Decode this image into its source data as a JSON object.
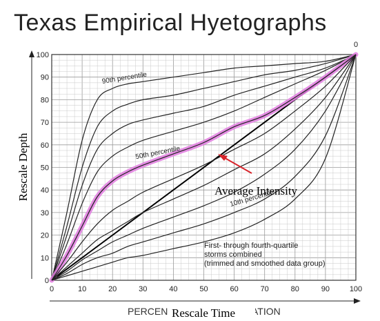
{
  "slide": {
    "title": "Texas Empirical Hyetographs"
  },
  "chart_data": {
    "type": "line",
    "title": "Texas Empirical Hyetographs",
    "xlabel": "Rescale Time",
    "ylabel": "Rescale Depth",
    "xlabel_print_left": "PERCEN",
    "xlabel_print_right": "ATION",
    "top_corner_label": "0",
    "xlim": [
      0,
      100
    ],
    "ylim": [
      0,
      100
    ],
    "xticks": [
      "0",
      "10",
      "20",
      "30",
      "40",
      "50",
      "60",
      "70",
      "80",
      "90",
      "100"
    ],
    "yticks": [
      "0",
      "10",
      "20",
      "30",
      "40",
      "50",
      "60",
      "70",
      "80",
      "90",
      "100"
    ],
    "grid": true,
    "x": [
      0,
      5,
      10,
      15,
      20,
      25,
      30,
      40,
      50,
      60,
      70,
      80,
      90,
      100
    ],
    "series": [
      {
        "name": "90th percentile",
        "values": [
          0,
          30,
          62,
          80,
          85,
          87,
          88,
          90,
          92,
          94,
          95,
          96,
          97,
          100
        ]
      },
      {
        "values": [
          0,
          24,
          50,
          68,
          75,
          78,
          80,
          82,
          85,
          88,
          91,
          93,
          96,
          100
        ]
      },
      {
        "values": [
          0,
          20,
          42,
          58,
          65,
          69,
          71,
          74,
          77,
          82,
          86,
          90,
          94,
          100
        ]
      },
      {
        "values": [
          0,
          16,
          34,
          48,
          55,
          59,
          62,
          66,
          70,
          75,
          81,
          87,
          93,
          100
        ]
      },
      {
        "name": "50th percentile",
        "values": [
          0,
          11,
          24,
          37,
          44,
          48,
          51,
          56,
          61,
          68,
          73,
          81,
          90,
          100
        ]
      },
      {
        "values": [
          0,
          8,
          17,
          25,
          31,
          35,
          39,
          45,
          51,
          58,
          65,
          75,
          86,
          100
        ]
      },
      {
        "values": [
          0,
          6,
          12,
          18,
          22,
          26,
          30,
          36,
          42,
          49,
          56,
          67,
          81,
          100
        ]
      },
      {
        "values": [
          0,
          4,
          9,
          13,
          17,
          20,
          23,
          28,
          33,
          39,
          47,
          58,
          75,
          100
        ]
      },
      {
        "name": "10th percentile",
        "values": [
          0,
          3,
          7,
          10,
          12,
          15,
          17,
          21,
          25,
          30,
          36,
          46,
          64,
          100
        ]
      },
      {
        "values": [
          0,
          2,
          4,
          6,
          8,
          10,
          11,
          14,
          17,
          21,
          27,
          36,
          54,
          100
        ]
      }
    ],
    "highlight_series": "50th percentile",
    "average_intensity": {
      "name": "Average Intensity",
      "x": [
        0,
        100
      ],
      "values": [
        0,
        100
      ]
    },
    "note_lines": [
      "First- through fourth-quartile",
      "storms combined",
      "(trimmed and smoothed data group)"
    ],
    "colors": {
      "highlight": "#e27de0",
      "arrow": "#d8232a",
      "curves": "#222222"
    }
  }
}
